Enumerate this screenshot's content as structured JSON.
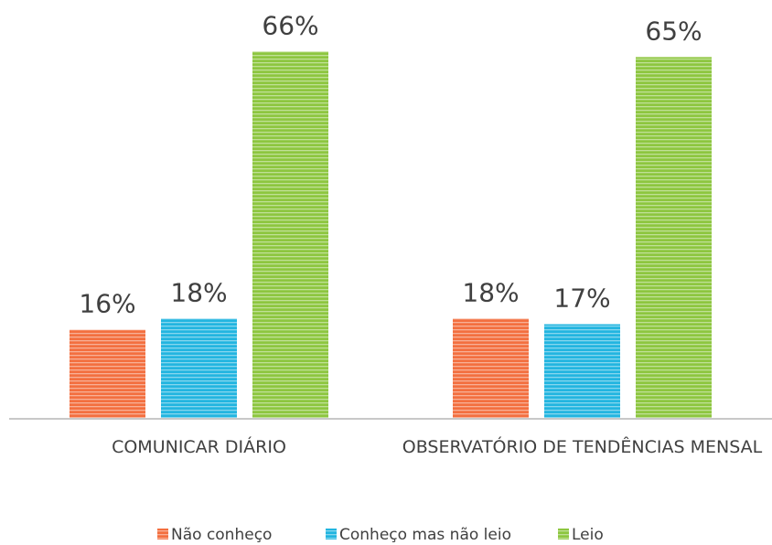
{
  "chart_data": {
    "type": "bar",
    "categories": [
      "COMUNICAR DIÁRIO",
      "OBSERVATÓRIO DE TENDÊNCIAS MENSAL"
    ],
    "series": [
      {
        "name": "Não conheço",
        "color": "#f36f3f",
        "values": [
          16,
          18
        ],
        "value_labels": [
          "16%",
          "18%"
        ]
      },
      {
        "name": "Conheço mas não leio",
        "color": "#22b5e0",
        "values": [
          18,
          17
        ],
        "value_labels": [
          "18%",
          "17%"
        ]
      },
      {
        "name": "Leio",
        "color": "#8dc63f",
        "values": [
          66,
          65
        ],
        "value_labels": [
          "66%",
          "65%"
        ]
      }
    ],
    "ylim": [
      0,
      70
    ],
    "legend": "bottom"
  }
}
